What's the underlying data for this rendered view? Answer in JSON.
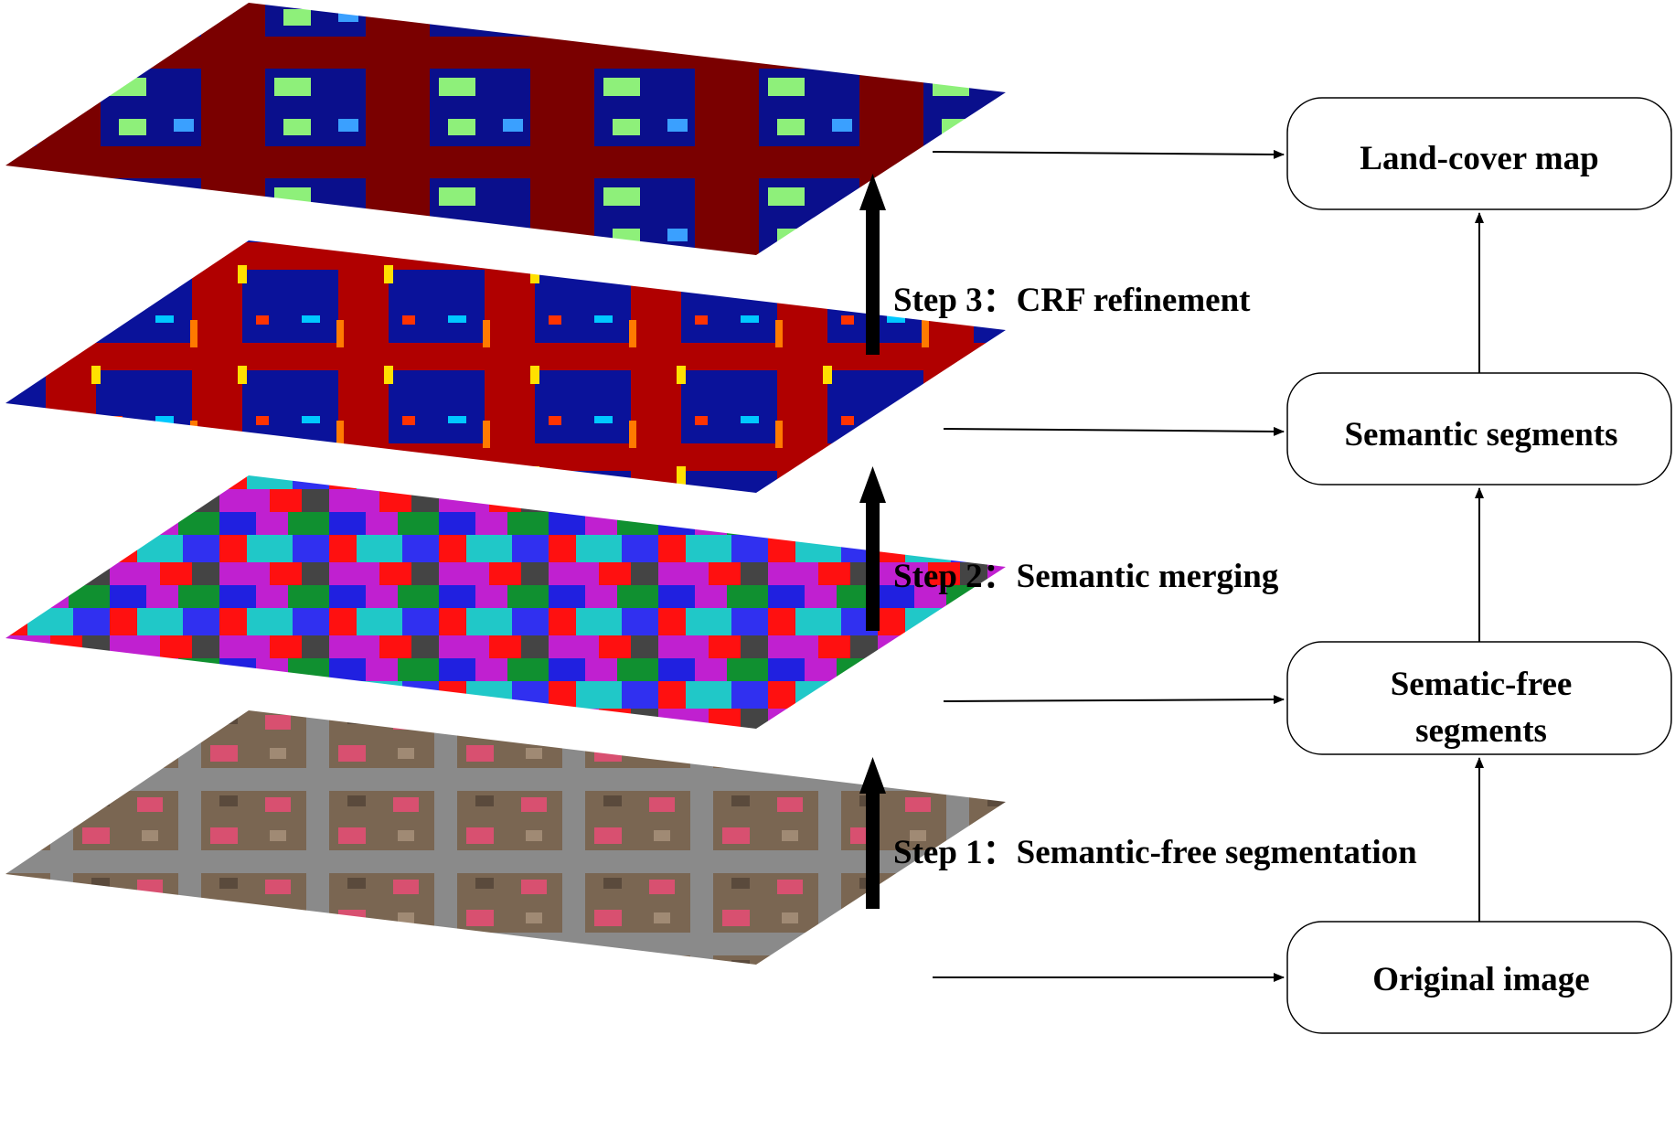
{
  "boxes": {
    "land_cover": "Land-cover map",
    "semantic": "Semantic segments",
    "free_line1": "Sematic-free",
    "free_line2": "segments",
    "original": "Original image"
  },
  "steps": {
    "step1": "Step 1：Semantic-free segmentation",
    "step2": "Step 2：Semantic merging",
    "step3": "Step 3：CRF refinement"
  }
}
